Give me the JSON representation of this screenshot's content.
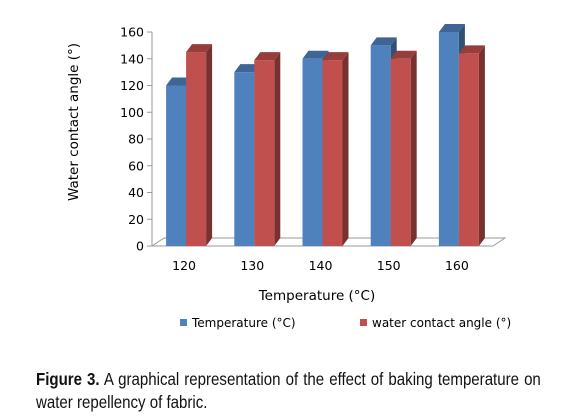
{
  "chart_data": {
    "type": "bar",
    "style": "3d-clustered-column",
    "categories": [
      "120",
      "130",
      "140",
      "150",
      "160"
    ],
    "series": [
      {
        "name": "Temperature (°C)",
        "values": [
          120,
          130,
          140,
          150,
          160
        ],
        "color": "#4F81BD"
      },
      {
        "name": "water contact angle (°)",
        "values": [
          145,
          139,
          139,
          140,
          144
        ],
        "color": "#C0504D"
      }
    ],
    "xlabel": "Temperature (°C)",
    "ylabel": "Water contact  angle (°)",
    "ylim": [
      0,
      160
    ],
    "yticks": [
      "0",
      "20",
      "40",
      "60",
      "80",
      "100",
      "120",
      "140",
      "160"
    ],
    "grid": false,
    "legend": "bottom"
  },
  "caption": {
    "label": "Figure 3.",
    "text": " A graphical representation of the effect of baking temperature on water repellency of fabric."
  }
}
